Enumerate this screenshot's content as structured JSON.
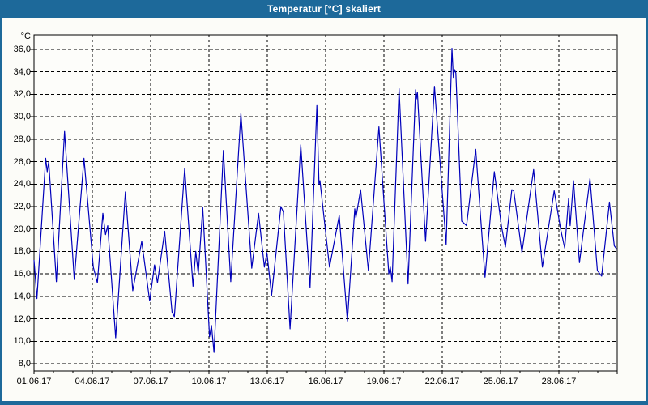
{
  "window": {
    "title": "Temperatur [°C] skaliert",
    "titlebar_color": "#1d699a",
    "border_color": "#1d699a",
    "background_color": "#fcfcf8"
  },
  "chart_data": {
    "type": "line",
    "title": "Temperatur [°C] skaliert",
    "series_name": "Temperatur",
    "ylabel": "°C",
    "line_color": "#0000bb",
    "grid": "dashed",
    "grid_color": "#000000",
    "legend": "none",
    "x_range_days": [
      0,
      30
    ],
    "x_tick_days": [
      0,
      3,
      6,
      9,
      12,
      15,
      18,
      21,
      24,
      27
    ],
    "x_tick_labels": [
      "01.06.17",
      "04.06.17",
      "07.06.17",
      "10.06.17",
      "13.06.17",
      "16.06.17",
      "19.06.17",
      "22.06.17",
      "25.06.17",
      "28.06.17"
    ],
    "x_gridline_days": [
      3,
      6,
      9,
      12,
      15,
      18,
      21,
      24,
      27
    ],
    "x_minor_tick_step_days": 1,
    "y_grid_min": 8,
    "y_grid_max": 36,
    "y_tick_values": [
      36,
      34,
      32,
      30,
      28,
      26,
      24,
      22,
      20,
      18,
      16,
      14,
      12,
      10,
      8
    ],
    "y_tick_labels": [
      "36,0",
      "34,0",
      "32,0",
      "30,0",
      "28,0",
      "26,0",
      "24,0",
      "22,0",
      "20,0",
      "18,0",
      "16,0",
      "14,0",
      "12,0",
      "10,0",
      "8,0"
    ],
    "points_day_temp": [
      [
        0.0,
        17.2
      ],
      [
        0.15,
        13.8
      ],
      [
        0.6,
        26.3
      ],
      [
        0.68,
        25.1
      ],
      [
        0.76,
        26.0
      ],
      [
        1.15,
        15.3
      ],
      [
        1.57,
        28.7
      ],
      [
        2.07,
        15.5
      ],
      [
        2.57,
        26.3
      ],
      [
        3.05,
        16.6
      ],
      [
        3.26,
        15.2
      ],
      [
        3.54,
        21.4
      ],
      [
        3.68,
        19.5
      ],
      [
        3.79,
        20.3
      ],
      [
        4.2,
        10.3
      ],
      [
        4.7,
        23.3
      ],
      [
        5.08,
        14.5
      ],
      [
        5.54,
        18.9
      ],
      [
        5.95,
        13.6
      ],
      [
        6.2,
        16.8
      ],
      [
        6.35,
        15.2
      ],
      [
        6.72,
        19.8
      ],
      [
        7.1,
        12.6
      ],
      [
        7.22,
        12.2
      ],
      [
        7.75,
        25.4
      ],
      [
        8.18,
        14.9
      ],
      [
        8.32,
        18.0
      ],
      [
        8.45,
        16.0
      ],
      [
        8.68,
        21.9
      ],
      [
        8.86,
        16.1
      ],
      [
        9.03,
        10.4
      ],
      [
        9.13,
        11.4
      ],
      [
        9.26,
        9.0
      ],
      [
        9.74,
        27.0
      ],
      [
        10.12,
        15.3
      ],
      [
        10.64,
        30.3
      ],
      [
        11.2,
        16.5
      ],
      [
        11.55,
        21.4
      ],
      [
        11.85,
        16.6
      ],
      [
        11.98,
        17.9
      ],
      [
        12.22,
        14.1
      ],
      [
        12.7,
        22.0
      ],
      [
        12.83,
        21.5
      ],
      [
        13.17,
        11.1
      ],
      [
        13.72,
        27.5
      ],
      [
        14.2,
        14.8
      ],
      [
        14.55,
        31.0
      ],
      [
        14.66,
        24.0
      ],
      [
        14.71,
        24.3
      ],
      [
        15.2,
        16.6
      ],
      [
        15.7,
        21.2
      ],
      [
        16.12,
        11.8
      ],
      [
        16.5,
        21.8
      ],
      [
        16.56,
        21.0
      ],
      [
        16.8,
        23.5
      ],
      [
        17.2,
        16.3
      ],
      [
        17.74,
        29.1
      ],
      [
        18.25,
        16.0
      ],
      [
        18.33,
        16.6
      ],
      [
        18.42,
        15.3
      ],
      [
        18.78,
        32.5
      ],
      [
        19.24,
        15.1
      ],
      [
        19.63,
        32.4
      ],
      [
        19.67,
        31.6
      ],
      [
        19.72,
        32.2
      ],
      [
        20.14,
        18.9
      ],
      [
        20.6,
        32.7
      ],
      [
        21.2,
        18.6
      ],
      [
        21.5,
        36.1
      ],
      [
        21.57,
        33.5
      ],
      [
        21.63,
        34.2
      ],
      [
        21.7,
        33.9
      ],
      [
        22.0,
        20.7
      ],
      [
        22.25,
        20.3
      ],
      [
        22.72,
        27.1
      ],
      [
        23.2,
        15.7
      ],
      [
        23.68,
        25.1
      ],
      [
        24.05,
        20.2
      ],
      [
        24.25,
        18.4
      ],
      [
        24.58,
        23.5
      ],
      [
        24.68,
        23.4
      ],
      [
        25.1,
        17.9
      ],
      [
        25.7,
        25.3
      ],
      [
        26.15,
        16.6
      ],
      [
        26.76,
        23.4
      ],
      [
        27.1,
        19.9
      ],
      [
        27.3,
        18.3
      ],
      [
        27.5,
        22.7
      ],
      [
        27.58,
        20.3
      ],
      [
        27.75,
        24.3
      ],
      [
        28.06,
        17.0
      ],
      [
        28.6,
        24.5
      ],
      [
        28.98,
        16.3
      ],
      [
        29.2,
        15.8
      ],
      [
        29.6,
        22.4
      ],
      [
        29.85,
        18.5
      ],
      [
        29.98,
        18.2
      ]
    ]
  }
}
